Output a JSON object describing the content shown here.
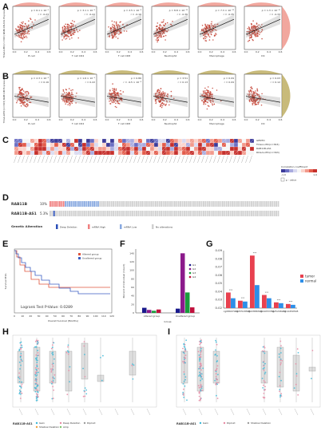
{
  "panels": {
    "A": {
      "letter": "A",
      "ylabel": "TCGA-LIHC(n=363) RAB11B-AS1 Expression",
      "subplots": [
        {
          "xlabel": "B cell",
          "rho": "ρ = 6.1 × 10⁻⁵",
          "r": "r = -0.23"
        },
        {
          "xlabel": "T cell CD4",
          "rho": "ρ = 3.1 × 10⁻⁵",
          "r": "r = -0.22"
        },
        {
          "xlabel": "T cell CD8",
          "rho": "ρ = 2.5 × 10⁻³",
          "r": "r = -0.16"
        },
        {
          "xlabel": "Neutrophil",
          "rho": "ρ = 8.8 × 10⁻¹²",
          "r": "r = -0.36"
        },
        {
          "xlabel": "Macrophage",
          "rho": "ρ = 7.3 × 10⁻¹²",
          "r": "r = -0.35"
        },
        {
          "xlabel": "DC",
          "rho": "ρ = 1.3 × 10⁻¹⁰",
          "r": "r = -0.33"
        }
      ]
    },
    "B": {
      "letter": "B",
      "ylabel": "TCGA-LIHC(n=363) RAB11B Expression",
      "subplots": [
        {
          "xlabel": "B cell",
          "rho": "ρ = 2.3 × 10⁻³",
          "r": "r = 0.16"
        },
        {
          "xlabel": "T cell CD4",
          "rho": "ρ = 1.6 × 10⁻⁵",
          "r": "r = 0.22"
        },
        {
          "xlabel": "T cell CD8",
          "rho": "ρ = 0.86",
          "r": "r = -9.5 × 10⁻³"
        },
        {
          "xlabel": "Neutrophil",
          "rho": "ρ = 3.51",
          "r": "r = 0.13"
        },
        {
          "xlabel": "Macrophage",
          "rho": "ρ = 0.09",
          "r": "r = 0.09"
        },
        {
          "xlabel": "DC",
          "rho": "ρ = 0.03",
          "r": "r = 0.12"
        }
      ]
    },
    "C": {
      "letter": "C",
      "right_labels": [
        "GENTO",
        "TCGA-LIHC(n=363)",
        "RAB11B-AS1",
        "RCGA-LIHC(n=363)"
      ],
      "legend_title": "Correlation coefficient",
      "legend_min": "-1.0",
      "legend_max": "1.0",
      "p_value_label": "p - value"
    },
    "D": {
      "letter": "D",
      "genes": [
        {
          "name": "RAB11B",
          "pct": "10%"
        },
        {
          "name": "RAB11B-AS1",
          "pct": "5.3%"
        }
      ],
      "legend_title": "Genetic Alteration",
      "legend_items": [
        {
          "label": "Deep Deletion",
          "color": "#2b4fb8"
        },
        {
          "label": "mRNA High",
          "color": "#f08080"
        },
        {
          "label": "mRNA Low",
          "color": "#87a8e0"
        },
        {
          "label": "No alterations",
          "color": "#d0d0d0"
        }
      ]
    },
    "E": {
      "letter": "E",
      "ylabel": "Survival Prob.",
      "xlabel": "Overall Survival (Months)",
      "logrank": "Logrank Test P-Value: 0.0289",
      "legend": [
        "Altered group",
        "Unaltered group"
      ],
      "legend_colors": [
        "#e0553c",
        "#3b5fc4"
      ],
      "xticks": [
        "0",
        "10",
        "20",
        "30",
        "40",
        "50",
        "60",
        "70",
        "80",
        "90",
        "100",
        "110",
        "120"
      ]
    },
    "F": {
      "letter": "F",
      "ylabel": "Percent of individual (Count)",
      "xlabel": "Group",
      "groups": [
        "Altered group",
        "Unaltered group"
      ],
      "legend": [
        {
          "label": "G1",
          "color": "#1a1a8c"
        },
        {
          "label": "G2",
          "color": "#8b1a8b"
        },
        {
          "label": "G3",
          "color": "#1a9c3c"
        },
        {
          "label": "G4",
          "color": "#c0103c"
        }
      ],
      "yticks": [
        "0",
        "20",
        "40",
        "60",
        "80",
        "100",
        "120",
        "140"
      ]
    },
    "G": {
      "letter": "G",
      "legend": [
        {
          "label": "tumor",
          "color": "#e8414f"
        },
        {
          "label": "normal",
          "color": "#2e8fe8"
        }
      ],
      "yticks": [
        "0.02",
        "0.03",
        "0.04",
        "0.05",
        "0.06",
        "0.07",
        "0.08",
        "0.09"
      ],
      "categories": [
        "cg08607001",
        "cg05518508",
        "cg22886536",
        "cg04053756",
        "cg25206981",
        "cg14450548"
      ]
    },
    "H": {
      "letter": "H",
      "legend_title": "RAB11B-AS1",
      "legend_items": [
        "Gain",
        "Deep Deletion",
        "Diploid",
        "Shallow Deletion",
        "Amp"
      ]
    },
    "I": {
      "letter": "I",
      "legend_title": "RAB11B-AS1",
      "legend_items": [
        "Gain",
        "Diploid",
        "Shallow Deletion"
      ]
    }
  },
  "chart_data": [
    {
      "type": "bar",
      "panel": "F",
      "categories": [
        "Altered group",
        "Unaltered group"
      ],
      "series": [
        {
          "name": "G1",
          "values": [
            12,
            10
          ]
        },
        {
          "name": "G2",
          "values": [
            7,
            140
          ]
        },
        {
          "name": "G3",
          "values": [
            5,
            48
          ]
        },
        {
          "name": "G4",
          "values": [
            8,
            13
          ]
        }
      ],
      "ylim": [
        0,
        150
      ]
    },
    {
      "type": "bar",
      "panel": "G",
      "categories": [
        "cg08607001",
        "cg05518508",
        "cg22886536",
        "cg04053756",
        "cg25206981",
        "cg14450548"
      ],
      "series": [
        {
          "name": "tumor",
          "values": [
            0.039,
            0.029,
            0.084,
            0.036,
            0.027,
            0.025
          ]
        },
        {
          "name": "normal",
          "values": [
            0.032,
            0.028,
            0.048,
            0.032,
            0.026,
            0.024
          ]
        }
      ],
      "ylim": [
        0.02,
        0.09
      ]
    }
  ]
}
